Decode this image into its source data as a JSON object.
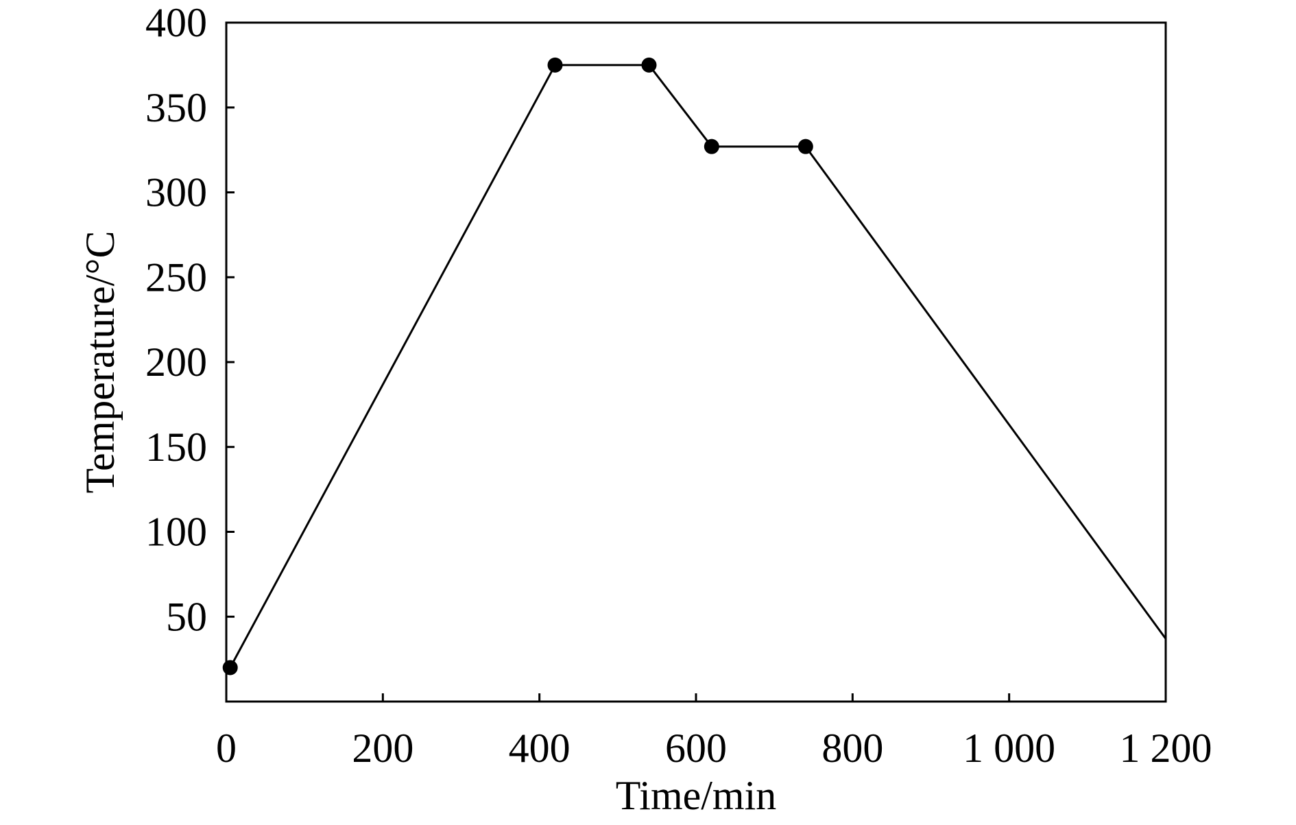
{
  "chart_data": {
    "type": "line",
    "xlabel": "Time/min",
    "ylabel": "Temperature/°C",
    "xlim": [
      0,
      1200
    ],
    "ylim": [
      0,
      400
    ],
    "x_ticks": [
      0,
      200,
      400,
      600,
      800,
      1000,
      1200
    ],
    "x_tick_labels": [
      "0",
      "200",
      "400",
      "600",
      "800",
      "1 000",
      "1 200"
    ],
    "y_ticks": [
      50,
      100,
      150,
      200,
      250,
      300,
      350,
      400
    ],
    "y_tick_labels": [
      "50",
      "100",
      "150",
      "200",
      "250",
      "300",
      "350",
      "400"
    ],
    "grid": false,
    "legend": "none",
    "series": [
      {
        "x": [
          5,
          420,
          540,
          620,
          740,
          1200
        ],
        "y": [
          20,
          375,
          375,
          327,
          327,
          37
        ],
        "markers": [
          true,
          true,
          true,
          true,
          true,
          false
        ]
      }
    ],
    "colors": {
      "line": "#000000",
      "marker": "#000000",
      "frame": "#000000"
    }
  }
}
